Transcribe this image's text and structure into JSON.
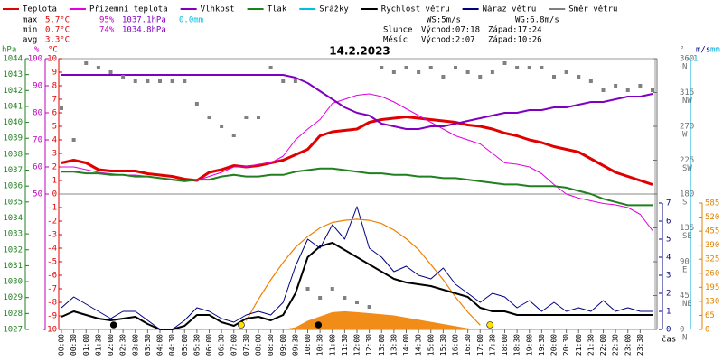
{
  "chart_data": {
    "type": "line",
    "title": "14.2.2023",
    "x_label": "čas",
    "x": [
      0,
      0.5,
      1,
      1.5,
      2,
      2.5,
      3,
      3.5,
      4,
      4.5,
      5,
      5.5,
      6,
      6.5,
      7,
      7.5,
      8,
      8.5,
      9,
      9.5,
      10,
      10.5,
      11,
      11.5,
      12,
      12.5,
      13,
      13.5,
      14,
      14.5,
      15,
      15.5,
      16,
      16.5,
      17,
      17.5,
      18,
      18.5,
      19,
      19.5,
      20,
      20.5,
      21,
      21.5,
      22,
      22.5,
      23,
      23.5,
      24
    ],
    "xlim": [
      0,
      24
    ],
    "xticks": [
      {
        "value": 0,
        "label": "00:00"
      },
      {
        "value": 0.5,
        "label": "00:30"
      },
      {
        "value": 1,
        "label": "01:00"
      },
      {
        "value": 1.5,
        "label": "01:30"
      },
      {
        "value": 2,
        "label": "02:00"
      },
      {
        "value": 2.5,
        "label": "02:30"
      },
      {
        "value": 3,
        "label": "03:00"
      },
      {
        "value": 3.5,
        "label": "03:30"
      },
      {
        "value": 4,
        "label": "04:00"
      },
      {
        "value": 4.5,
        "label": "04:30"
      },
      {
        "value": 5,
        "label": "05:00"
      },
      {
        "value": 5.5,
        "label": "05:30"
      },
      {
        "value": 6,
        "label": "06:00"
      },
      {
        "value": 6.5,
        "label": "06:30"
      },
      {
        "value": 7,
        "label": "07:00"
      },
      {
        "value": 7.5,
        "label": "07:30"
      },
      {
        "value": 8,
        "label": "08:00"
      },
      {
        "value": 8.5,
        "label": "08:30"
      },
      {
        "value": 9,
        "label": "09:00"
      },
      {
        "value": 9.5,
        "label": "09:30"
      },
      {
        "value": 10,
        "label": "10:00"
      },
      {
        "value": 10.5,
        "label": "10:30"
      },
      {
        "value": 11,
        "label": "11:00"
      },
      {
        "value": 11.5,
        "label": "11:30"
      },
      {
        "value": 12,
        "label": "12:00"
      },
      {
        "value": 12.5,
        "label": "12:30"
      },
      {
        "value": 13,
        "label": "13:00"
      },
      {
        "value": 13.5,
        "label": "13:30"
      },
      {
        "value": 14,
        "label": "14:00"
      },
      {
        "value": 14.5,
        "label": "14:30"
      },
      {
        "value": 15,
        "label": "15:00"
      },
      {
        "value": 15.5,
        "label": "15:30"
      },
      {
        "value": 16,
        "label": "16:00"
      },
      {
        "value": 16.5,
        "label": "16:30"
      },
      {
        "value": 17,
        "label": "17:00"
      },
      {
        "value": 17.5,
        "label": "17:30"
      },
      {
        "value": 18,
        "label": "18:00"
      },
      {
        "value": 18.5,
        "label": "18:30"
      },
      {
        "value": 19,
        "label": "19:00"
      },
      {
        "value": 19.5,
        "label": "19:30"
      },
      {
        "value": 20,
        "label": "20:00"
      },
      {
        "value": 20.5,
        "label": "20:30"
      },
      {
        "value": 21,
        "label": "21:00"
      },
      {
        "value": 21.5,
        "label": "21:30"
      },
      {
        "value": 22,
        "label": "22:00"
      },
      {
        "value": 22.5,
        "label": "22:30"
      },
      {
        "value": 23,
        "label": "23:00"
      },
      {
        "value": 23.5,
        "label": "23:30"
      }
    ],
    "axes": {
      "hpa": {
        "label": "hPa",
        "color": "#208020",
        "lim": [
          1027,
          1044
        ],
        "ticks": [
          1027,
          1028,
          1029,
          1030,
          1031,
          1032,
          1033,
          1034,
          1035,
          1036,
          1037,
          1038,
          1039,
          1040,
          1041,
          1042,
          1043,
          1044
        ]
      },
      "pct": {
        "label": "%",
        "color": "#c000c0",
        "lim": [
          0,
          100
        ],
        "ticks": [
          50,
          60,
          70,
          80,
          90,
          100
        ]
      },
      "c": {
        "label": "°C",
        "color": "#e00000",
        "lim": [
          -10,
          10
        ],
        "ticks": [
          -10,
          -9,
          -8,
          -7,
          -6,
          -5,
          -4,
          -3,
          -2,
          -1,
          0,
          1,
          2,
          3,
          4,
          5,
          6,
          7,
          8,
          9,
          10
        ]
      },
      "deg": {
        "label": "°",
        "color": "#707070",
        "lim": [
          0,
          360
        ],
        "ticks": [
          0,
          45,
          90,
          135,
          180,
          225,
          270,
          315,
          360
        ],
        "compass": [
          "N",
          "NE",
          "E",
          "SE",
          "S",
          "SW",
          "W",
          "NW",
          "N"
        ]
      },
      "ms": {
        "label": "m/s",
        "color": "#000080",
        "lim": [
          0,
          7
        ],
        "ticks": [
          0,
          1,
          2,
          3,
          4,
          5,
          6,
          7
        ]
      },
      "mm": {
        "label": "mm",
        "color": "#00a8d8",
        "lim": [
          0,
          1
        ],
        "ticks": [
          1
        ]
      },
      "wm2": {
        "color": "#e08000",
        "lim": [
          0,
          585
        ],
        "ticks": [
          0,
          65,
          130,
          195,
          260,
          325,
          390,
          455,
          520,
          585
        ]
      }
    },
    "series": [
      {
        "name": "Teplota",
        "color": "#e00000",
        "axis": "c",
        "width": 3,
        "values": [
          2.3,
          2.5,
          2.3,
          1.8,
          1.7,
          1.7,
          1.7,
          1.5,
          1.4,
          1.3,
          1.1,
          1.0,
          1.6,
          1.8,
          2.1,
          2.0,
          2.1,
          2.3,
          2.5,
          2.9,
          3.3,
          4.3,
          4.6,
          4.7,
          4.8,
          5.3,
          5.5,
          5.6,
          5.7,
          5.6,
          5.5,
          5.4,
          5.3,
          5.1,
          5.0,
          4.8,
          4.5,
          4.3,
          4.0,
          3.8,
          3.5,
          3.3,
          3.1,
          2.6,
          2.1,
          1.6,
          1.3,
          1.0,
          0.7
        ]
      },
      {
        "name": "Přízemní teplota",
        "color": "#e000e0",
        "axis": "c",
        "width": 1,
        "values": [
          2.0,
          2.0,
          1.8,
          1.6,
          1.5,
          1.4,
          1.4,
          1.3,
          1.2,
          1.1,
          1.0,
          1.0,
          1.3,
          1.6,
          2.0,
          2.0,
          2.2,
          2.3,
          2.8,
          4.0,
          4.8,
          5.5,
          6.7,
          7.0,
          7.3,
          7.4,
          7.2,
          6.8,
          6.3,
          5.8,
          5.3,
          4.8,
          4.3,
          4.0,
          3.7,
          3.0,
          2.3,
          2.2,
          2.0,
          1.5,
          0.7,
          0.0,
          -0.3,
          -0.5,
          -0.7,
          -0.8,
          -1.0,
          -1.5,
          -2.7
        ]
      },
      {
        "name": "Vlhkost",
        "color": "#8000c0",
        "axis": "pct",
        "width": 2,
        "values": [
          94,
          94,
          94,
          94,
          94,
          94,
          94,
          94,
          94,
          94,
          94,
          94,
          94,
          94,
          94,
          94,
          94,
          94,
          94,
          93,
          91,
          88,
          85,
          82,
          80,
          79,
          76,
          75,
          74,
          74,
          75,
          75,
          76,
          77,
          78,
          79,
          80,
          80,
          81,
          81,
          82,
          82,
          83,
          84,
          84,
          85,
          86,
          86,
          87
        ]
      },
      {
        "name": "Tlak",
        "color": "#208020",
        "axis": "hpa",
        "width": 2,
        "values": [
          1036.9,
          1036.9,
          1036.8,
          1036.8,
          1036.7,
          1036.7,
          1036.6,
          1036.6,
          1036.5,
          1036.4,
          1036.3,
          1036.4,
          1036.4,
          1036.6,
          1036.7,
          1036.6,
          1036.6,
          1036.7,
          1036.7,
          1036.9,
          1037.0,
          1037.1,
          1037.1,
          1037.0,
          1036.9,
          1036.8,
          1036.8,
          1036.7,
          1036.7,
          1036.6,
          1036.6,
          1036.5,
          1036.5,
          1036.4,
          1036.3,
          1036.2,
          1036.1,
          1036.1,
          1036.0,
          1036.0,
          1036.0,
          1035.9,
          1035.7,
          1035.5,
          1035.2,
          1035.0,
          1034.8,
          1034.8,
          1034.8
        ]
      },
      {
        "name": "Srážky",
        "color": "#00c0e0",
        "axis": "mm",
        "width": 1,
        "values": [
          0,
          0,
          0,
          0,
          0,
          0,
          0,
          0,
          0,
          0,
          0,
          0,
          0,
          0,
          0,
          0,
          0,
          0,
          0,
          0,
          0,
          0,
          0,
          0,
          0,
          0,
          0,
          0,
          0,
          0,
          0,
          0,
          0,
          0,
          0,
          0,
          0,
          0,
          0,
          0,
          0,
          0,
          0,
          0,
          0,
          0,
          0,
          0,
          0
        ]
      },
      {
        "name": "Rychlost větru",
        "color": "#000000",
        "axis": "ms",
        "width": 2,
        "values": [
          0.7,
          1.0,
          0.8,
          0.6,
          0.5,
          0.6,
          0.7,
          0.3,
          0,
          0,
          0.2,
          0.8,
          0.8,
          0.4,
          0.2,
          0.6,
          0.7,
          0.5,
          0.8,
          2.0,
          4.0,
          4.6,
          4.8,
          4.4,
          4.0,
          3.6,
          3.2,
          2.8,
          2.6,
          2.5,
          2.4,
          2.2,
          2.0,
          1.8,
          1.2,
          1.0,
          1.0,
          0.8,
          0.8,
          0.8,
          0.8,
          0.8,
          0.8,
          0.8,
          0.8,
          0.8,
          0.8,
          0.8,
          0.8
        ]
      },
      {
        "name": "Náraz větru",
        "color": "#000080",
        "axis": "ms",
        "width": 1,
        "values": [
          1.2,
          1.8,
          1.4,
          1.0,
          0.6,
          1.0,
          1.0,
          0.5,
          0,
          0,
          0.5,
          1.2,
          1.0,
          0.6,
          0.4,
          0.8,
          1.0,
          0.8,
          1.5,
          3.5,
          5.0,
          4.5,
          5.8,
          5.0,
          6.8,
          4.5,
          4.0,
          3.2,
          3.5,
          3.0,
          2.8,
          3.4,
          2.5,
          2.0,
          1.5,
          2.0,
          1.8,
          1.2,
          1.6,
          1.0,
          1.5,
          1.0,
          1.2,
          1.0,
          1.6,
          1.0,
          1.2,
          1.0,
          1.0
        ]
      },
      {
        "name": "Směr větru",
        "color": "#808080",
        "axis": "deg",
        "style": "scatter",
        "values": [
          294,
          252,
          354,
          348,
          342,
          336,
          330,
          330,
          330,
          330,
          330,
          300,
          282,
          270,
          258,
          282,
          282,
          348,
          330,
          330,
          54,
          42,
          54,
          42,
          36,
          30,
          348,
          342,
          348,
          342,
          348,
          336,
          348,
          342,
          336,
          342,
          354,
          348,
          348,
          348,
          336,
          342,
          336,
          330,
          318,
          324,
          318,
          324,
          318
        ]
      }
    ],
    "radiation": {
      "axis": "wm2",
      "color": "#f08000",
      "values": [
        0,
        0,
        0,
        0,
        0,
        0,
        0,
        0,
        0,
        0,
        0,
        0,
        0,
        0,
        0,
        0,
        0,
        0,
        0,
        10,
        40,
        60,
        80,
        84,
        80,
        75,
        70,
        65,
        55,
        45,
        35,
        25,
        15,
        5,
        0,
        0,
        0,
        0,
        0,
        0,
        0,
        0,
        0,
        0,
        0,
        0,
        0,
        0,
        0
      ],
      "clear_sky": [
        null,
        null,
        null,
        null,
        null,
        null,
        null,
        null,
        null,
        null,
        null,
        null,
        null,
        null,
        null,
        40,
        140,
        230,
        310,
        380,
        430,
        470,
        495,
        505,
        510,
        505,
        490,
        460,
        420,
        370,
        300,
        230,
        150,
        80,
        20,
        null,
        null,
        null,
        null,
        null,
        null,
        null,
        null,
        null,
        null,
        null,
        null,
        null,
        null
      ]
    },
    "stats": {
      "max": {
        "label": "max",
        "temp": "5.7°C",
        "hum": "95%",
        "press": "1037.1hPa",
        "rain": "0.0mm"
      },
      "min": {
        "label": "min",
        "temp": "0.7°C",
        "hum": "74%",
        "press": "1034.8hPa"
      },
      "avg": {
        "label": "avg",
        "temp": "3.3°C"
      }
    },
    "wind_summary": {
      "ws": "WS:5m/s",
      "wg": "WG:6.8m/s"
    },
    "sun": {
      "label": "Slunce",
      "rise": "Východ:07:18",
      "set": "Západ:17:24"
    },
    "moon": {
      "label": "Měsíc",
      "rise": "Východ:2:07",
      "set": "Západ:10:26"
    }
  }
}
